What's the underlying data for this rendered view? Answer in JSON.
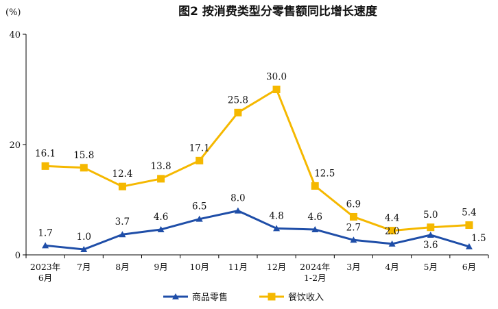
{
  "chart_data": {
    "type": "line",
    "title": "图2  按消费类型分零售额同比增长速度",
    "unit": "(%)",
    "ylim": [
      0,
      40
    ],
    "yticks": [
      "0",
      "20",
      "40"
    ],
    "categories": [
      [
        "2023年",
        "6月"
      ],
      [
        "7月"
      ],
      [
        "8月"
      ],
      [
        "9月"
      ],
      [
        "10月"
      ],
      [
        "11月"
      ],
      [
        "12月"
      ],
      [
        "2024年",
        "1-2月"
      ],
      [
        "3月"
      ],
      [
        "4月"
      ],
      [
        "5月"
      ],
      [
        "6月"
      ]
    ],
    "series": [
      {
        "name": "商品零售",
        "color": "#1f4ea8",
        "marker": "triangle",
        "values": [
          1.7,
          1.0,
          3.7,
          4.6,
          6.5,
          8.0,
          4.8,
          4.6,
          2.7,
          2.0,
          3.6,
          1.5
        ],
        "labels": [
          "1.7",
          "1.0",
          "3.7",
          "4.6",
          "6.5",
          "8.0",
          "4.8",
          "4.6",
          "2.7",
          "2.0",
          "3.6",
          "1.5"
        ]
      },
      {
        "name": "餐饮收入",
        "color": "#f5b800",
        "marker": "square",
        "values": [
          16.1,
          15.8,
          12.4,
          13.8,
          17.1,
          25.8,
          30.0,
          12.5,
          6.9,
          4.4,
          5.0,
          5.4
        ],
        "labels": [
          "16.1",
          "15.8",
          "12.4",
          "13.8",
          "17.1",
          "25.8",
          "30.0",
          "12.5",
          "6.9",
          "4.4",
          "5.0",
          "5.4"
        ]
      }
    ],
    "grid": false,
    "legend_position": "bottom"
  }
}
